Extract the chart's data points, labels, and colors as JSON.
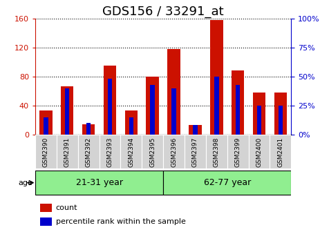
{
  "title": "GDS156 / 33291_at",
  "samples": [
    "GSM2390",
    "GSM2391",
    "GSM2392",
    "GSM2393",
    "GSM2394",
    "GSM2395",
    "GSM2396",
    "GSM2397",
    "GSM2398",
    "GSM2399",
    "GSM2400",
    "GSM2401"
  ],
  "count_values": [
    33,
    67,
    14,
    95,
    33,
    80,
    118,
    13,
    158,
    88,
    58,
    58
  ],
  "percentile_values": [
    15,
    40,
    10,
    48,
    15,
    43,
    40,
    8,
    50,
    43,
    25,
    25
  ],
  "bar_color": "#cc1100",
  "percentile_color": "#0000cc",
  "ylim_left": [
    0,
    160
  ],
  "ylim_right": [
    0,
    100
  ],
  "yticks_left": [
    0,
    40,
    80,
    120,
    160
  ],
  "yticks_right": [
    0,
    25,
    50,
    75,
    100
  ],
  "ytick_labels_left": [
    "0",
    "40",
    "80",
    "120",
    "160"
  ],
  "ytick_labels_right": [
    "0%",
    "25%",
    "50%",
    "75%",
    "100%"
  ],
  "group1_label": "21-31 year",
  "group2_label": "62-77 year",
  "age_label": "age",
  "legend_count": "count",
  "legend_percentile": "percentile rank within the sample",
  "title_fontsize": 13,
  "tick_label_fontsize": 8,
  "axis_color_left": "#cc1100",
  "axis_color_right": "#0000cc",
  "bg_color": "#ffffff",
  "group_bg_color": "#90ee90",
  "xticklabel_bg": "#d3d3d3"
}
